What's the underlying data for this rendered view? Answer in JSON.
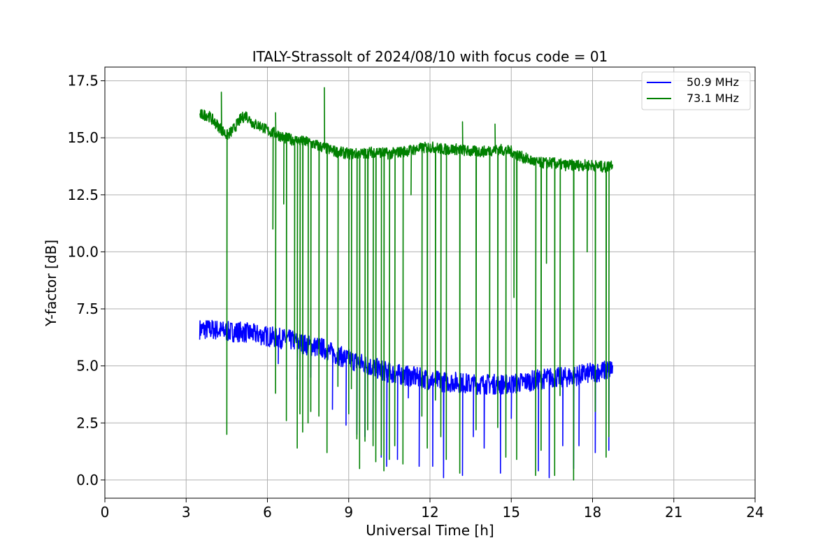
{
  "chart_data": {
    "type": "line",
    "title": "ITALY-Strassolt of 2024/08/10 with focus code = 01",
    "xlabel": "Universal Time [h]",
    "ylabel": "Y-factor [dB]",
    "xlim": [
      0,
      24
    ],
    "ylim": [
      -0.8,
      18.1
    ],
    "xticks": [
      0,
      3,
      6,
      9,
      12,
      15,
      18,
      21,
      24
    ],
    "xtick_labels": [
      "0",
      "3",
      "6",
      "9",
      "12",
      "15",
      "18",
      "21",
      "24"
    ],
    "yticks": [
      0.0,
      2.5,
      5.0,
      7.5,
      10.0,
      12.5,
      15.0,
      17.5
    ],
    "ytick_labels": [
      "0.0",
      "2.5",
      "5.0",
      "7.5",
      "10.0",
      "12.5",
      "15.0",
      "17.5"
    ],
    "grid": true,
    "legend_position": "top-right",
    "series": [
      {
        "name": "50.9 MHz",
        "color": "#0000ff",
        "x": [
          3.5,
          4.0,
          4.5,
          5.0,
          5.5,
          6.0,
          6.5,
          7.0,
          7.5,
          8.0,
          8.5,
          9.0,
          9.5,
          10.0,
          10.5,
          11.0,
          11.5,
          12.0,
          12.5,
          13.0,
          13.5,
          14.0,
          14.5,
          15.0,
          15.5,
          16.0,
          16.5,
          17.0,
          17.5,
          18.0,
          18.5,
          18.75
        ],
        "y": [
          6.6,
          6.6,
          6.5,
          6.5,
          6.4,
          6.3,
          6.2,
          6.1,
          5.9,
          5.8,
          5.5,
          5.3,
          5.1,
          4.9,
          4.7,
          4.6,
          4.5,
          4.4,
          4.3,
          4.3,
          4.2,
          4.2,
          4.2,
          4.2,
          4.3,
          4.4,
          4.5,
          4.5,
          4.6,
          4.7,
          4.8,
          4.9
        ],
        "band": 0.45,
        "dips": [
          [
            6.4,
            5.1
          ],
          [
            7.1,
            4.4
          ],
          [
            7.6,
            4.5
          ],
          [
            8.4,
            3.1
          ],
          [
            8.9,
            2.4
          ],
          [
            9.3,
            2.0
          ],
          [
            9.6,
            1.9
          ],
          [
            9.9,
            2.2
          ],
          [
            10.2,
            1.0
          ],
          [
            10.4,
            0.6
          ],
          [
            10.8,
            0.9
          ],
          [
            11.2,
            3.6
          ],
          [
            11.6,
            0.6
          ],
          [
            12.1,
            0.6
          ],
          [
            12.5,
            0.1
          ],
          [
            13.2,
            0.2
          ],
          [
            13.6,
            1.9
          ],
          [
            14.0,
            1.4
          ],
          [
            14.6,
            0.3
          ],
          [
            15.0,
            2.7
          ],
          [
            16.0,
            0.4
          ],
          [
            16.4,
            0.1
          ],
          [
            16.9,
            1.5
          ],
          [
            17.3,
            0.5
          ],
          [
            17.5,
            1.5
          ],
          [
            18.1,
            1.2
          ],
          [
            18.6,
            1.3
          ]
        ]
      },
      {
        "name": "73.1 MHz",
        "color": "#008000",
        "x": [
          3.5,
          3.8,
          4.2,
          4.5,
          4.7,
          5.0,
          5.2,
          5.5,
          5.8,
          6.0,
          6.3,
          6.6,
          7.0,
          7.5,
          8.0,
          8.5,
          9.0,
          9.5,
          10.0,
          10.5,
          11.0,
          11.5,
          12.0,
          12.5,
          13.0,
          13.5,
          14.0,
          14.5,
          15.0,
          15.5,
          16.0,
          16.5,
          17.0,
          17.5,
          18.0,
          18.5,
          18.75
        ],
        "y": [
          16.0,
          16.0,
          15.5,
          15.1,
          15.3,
          15.8,
          16.0,
          15.6,
          15.5,
          15.3,
          15.2,
          15.0,
          14.9,
          14.8,
          14.6,
          14.4,
          14.3,
          14.3,
          14.4,
          14.3,
          14.4,
          14.5,
          14.6,
          14.5,
          14.5,
          14.4,
          14.4,
          14.5,
          14.4,
          14.1,
          13.9,
          13.9,
          13.8,
          13.8,
          13.8,
          13.7,
          13.9
        ],
        "band": 0.25,
        "dips": [
          [
            4.5,
            2.0
          ],
          [
            6.2,
            11.0
          ],
          [
            6.3,
            3.8
          ],
          [
            6.6,
            12.1
          ],
          [
            6.7,
            2.6
          ],
          [
            7.0,
            6.0
          ],
          [
            7.1,
            1.4
          ],
          [
            7.2,
            2.9
          ],
          [
            7.3,
            2.1
          ],
          [
            7.5,
            2.5
          ],
          [
            7.6,
            3.0
          ],
          [
            7.9,
            2.8
          ],
          [
            8.2,
            1.2
          ],
          [
            8.6,
            4.1
          ],
          [
            9.0,
            2.9
          ],
          [
            9.1,
            4.0
          ],
          [
            9.3,
            1.8
          ],
          [
            9.4,
            0.5
          ],
          [
            9.6,
            1.7
          ],
          [
            9.7,
            2.2
          ],
          [
            9.9,
            1.5
          ],
          [
            10.0,
            0.8
          ],
          [
            10.2,
            1.1
          ],
          [
            10.3,
            0.4
          ],
          [
            10.5,
            0.9
          ],
          [
            10.7,
            1.5
          ],
          [
            11.0,
            0.7
          ],
          [
            11.3,
            12.5
          ],
          [
            11.7,
            2.8
          ],
          [
            11.9,
            1.4
          ],
          [
            12.2,
            3.5
          ],
          [
            12.4,
            1.9
          ],
          [
            12.6,
            0.9
          ],
          [
            13.1,
            0.3
          ],
          [
            13.7,
            2.2
          ],
          [
            14.2,
            4.5
          ],
          [
            14.5,
            2.3
          ],
          [
            14.8,
            1.0
          ],
          [
            15.1,
            8.0
          ],
          [
            15.2,
            0.9
          ],
          [
            15.9,
            0.2
          ],
          [
            16.1,
            1.3
          ],
          [
            16.3,
            9.5
          ],
          [
            16.6,
            0.2
          ],
          [
            16.8,
            3.7
          ],
          [
            17.3,
            0.0
          ],
          [
            17.8,
            10.0
          ],
          [
            18.1,
            3.0
          ],
          [
            18.5,
            1.0
          ],
          [
            18.6,
            1.9
          ]
        ],
        "spikes": [
          [
            4.3,
            17.0
          ],
          [
            8.1,
            17.2
          ],
          [
            6.3,
            16.1
          ],
          [
            13.2,
            15.7
          ],
          [
            14.4,
            15.6
          ]
        ]
      }
    ]
  }
}
